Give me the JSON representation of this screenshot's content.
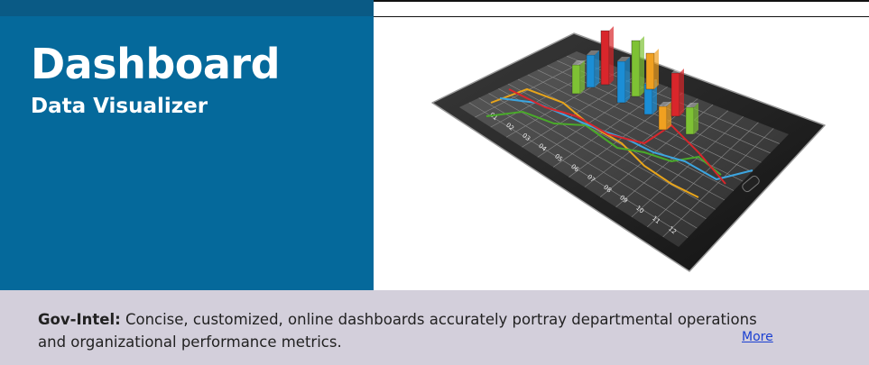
{
  "hero": {
    "title": "Dashboard",
    "subtitle": "Data Visualizer",
    "brand_color": "#05699b"
  },
  "tablet_chart": {
    "x_ticks": [
      "01",
      "02",
      "03",
      "04",
      "05",
      "06",
      "07",
      "08",
      "09",
      "10",
      "11",
      "12"
    ],
    "bar_colors": [
      "#7ec234",
      "#1b8ed6",
      "#d9262b",
      "#f0a020"
    ]
  },
  "footer": {
    "lead": "Gov-Intel:",
    "text": " Concise, customized, online dashboards accurately portray departmental operations and organizational performance metrics.",
    "more_link": "More",
    "background": "#d3cfdb"
  }
}
